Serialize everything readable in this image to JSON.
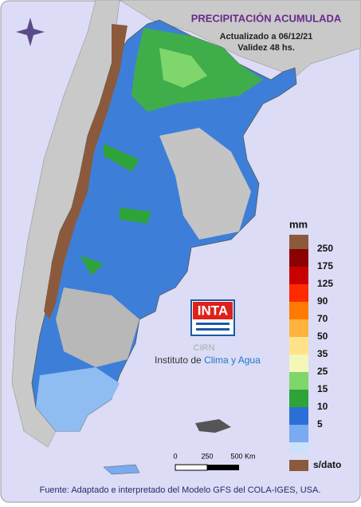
{
  "header": {
    "title": "PRECIPITACIÓN ACUMULADA",
    "updated": "Actualizado a 06/12/21",
    "validity": "Validez 48 hs."
  },
  "legend": {
    "unit": "mm",
    "items": [
      {
        "label": "250",
        "color": "#8b0000"
      },
      {
        "label": "175",
        "color": "#c80000"
      },
      {
        "label": "125",
        "color": "#ff2a00"
      },
      {
        "label": "90",
        "color": "#ff7a00"
      },
      {
        "label": "70",
        "color": "#ffb23c"
      },
      {
        "label": "50",
        "color": "#ffe38a"
      },
      {
        "label": "35",
        "color": "#f3f7b8"
      },
      {
        "label": "25",
        "color": "#7fd66b"
      },
      {
        "label": "15",
        "color": "#2ea33a"
      },
      {
        "label": "10",
        "color": "#2a6fd6"
      },
      {
        "label": "5",
        "color": "#7aaaf0"
      }
    ],
    "no_data": "s/dato"
  },
  "scale": {
    "labels": [
      "0",
      "250",
      "500 Km"
    ]
  },
  "logo": {
    "brand": "INTA",
    "unit": "CIRN",
    "institute": "Instituto de",
    "institute_highlight": "Clima y Agua"
  },
  "footer": "Fuente: Adaptado e interpretado del Modelo GFS del COLA-IGES, USA."
}
